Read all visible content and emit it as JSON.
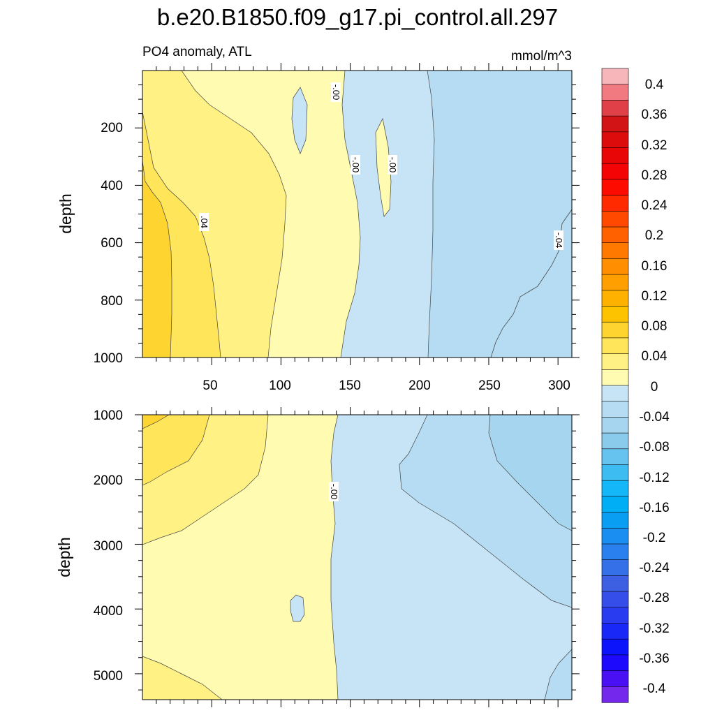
{
  "chart_data": {
    "type": "contour",
    "title": "b.e20.B1850.f09_g17.pi_control.all.297",
    "subtitle_left": "PO4 anomaly, ATL",
    "subtitle_right": "mmol/m^3",
    "panels": [
      {
        "name": "upper",
        "ylabel": "depth",
        "ylim": [
          0,
          1000
        ],
        "y_ticks": [
          "200",
          "400",
          "600",
          "800",
          "1000"
        ],
        "x_ticks": [
          "50",
          "100",
          "150",
          "200",
          "250",
          "300"
        ],
        "xlim": [
          0,
          310
        ],
        "contour_labels": [
          "-.00",
          "-.00",
          "-.00",
          ".04",
          "-.04"
        ]
      },
      {
        "name": "lower",
        "ylabel": "depth",
        "ylim": [
          1000,
          5400
        ],
        "y_ticks": [
          "1000",
          "2000",
          "3000",
          "4000",
          "5000"
        ],
        "xlim": [
          0,
          310
        ],
        "contour_labels": [
          "-.00"
        ]
      }
    ],
    "colorbar": {
      "labels": [
        "0.4",
        "0.36",
        "0.32",
        "0.28",
        "0.24",
        "0.2",
        "0.16",
        "0.12",
        "0.08",
        "0.04",
        "0",
        "-0.04",
        "-0.08",
        "-0.12",
        "-0.16",
        "-0.2",
        "-0.24",
        "-0.28",
        "-0.32",
        "-0.36",
        "-0.4"
      ],
      "colors": [
        "#f7b6b9",
        "#f07a7f",
        "#e04047",
        "#d21416",
        "#dc0c0c",
        "#e80606",
        "#f40404",
        "#fe0b00",
        "#ff2a00",
        "#ff4900",
        "#ff6100",
        "#ff7800",
        "#ff8f00",
        "#ffa000",
        "#ffb100",
        "#fec300",
        "#fed431",
        "#fee55a",
        "#fff183",
        "#fffbb0",
        "#c6e4f6",
        "#b5dcf2",
        "#a5d5ef",
        "#8acbec",
        "#66c3ef",
        "#3dbcf2",
        "#14b7f7",
        "#00aef5",
        "#0a9ef3",
        "#1a8ef1",
        "#2a80ee",
        "#3570e8",
        "#3d5fe2",
        "#364ee9",
        "#2a3cf0",
        "#1a28f7",
        "#0c14fc",
        "#1d0afc",
        "#4a10f4",
        "#7328ec"
      ]
    }
  }
}
